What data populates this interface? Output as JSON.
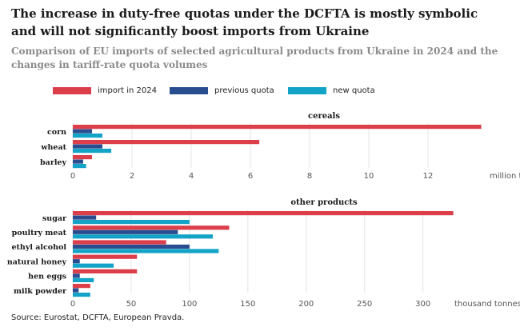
{
  "title": "The increase in duty-free quotas under the DCFTA is mostly symbolic and will not significantly boost imports from Ukraine",
  "subtitle": "Comparison of EU imports of selected agricultural products from Ukraine in 2024 and the changes in tariff-rate quota volumes",
  "source": "Source: Eurostat, DCFTA, European Pravda.",
  "colors": {
    "import": "#dc3e4a",
    "previous": "#2a4d8f",
    "new": "#13a3c6",
    "grid": "#e4e4e4",
    "axis_text": "#555555"
  },
  "legend": [
    {
      "key": "import",
      "label": "import in 2024"
    },
    {
      "key": "previous",
      "label": "previous quota"
    },
    {
      "key": "new",
      "label": "new quota"
    }
  ],
  "chart_data": [
    {
      "type": "bar",
      "orientation": "horizontal",
      "title": "cereals",
      "unit_label": "million tonnes",
      "categories": [
        "corn",
        "wheat",
        "barley"
      ],
      "series": [
        {
          "name": "import in 2024",
          "key": "import",
          "values": [
            13.8,
            6.3,
            0.65
          ]
        },
        {
          "name": "previous quota",
          "key": "previous",
          "values": [
            0.65,
            1.0,
            0.35
          ]
        },
        {
          "name": "new quota",
          "key": "new",
          "values": [
            1.0,
            1.3,
            0.45
          ]
        }
      ],
      "xlim": [
        0,
        14
      ],
      "ticks": [
        0,
        2,
        4,
        6,
        8,
        10,
        12
      ],
      "grid": true
    },
    {
      "type": "bar",
      "orientation": "horizontal",
      "title": "other products",
      "unit_label": "thousand tonnes",
      "categories": [
        "sugar",
        "poultry meat",
        "ethyl alcohol",
        "natural honey",
        "hen eggs",
        "milk powder"
      ],
      "series": [
        {
          "name": "import in 2024",
          "key": "import",
          "values": [
            326,
            134,
            80,
            55,
            55,
            15
          ]
        },
        {
          "name": "previous quota",
          "key": "previous",
          "values": [
            20,
            90,
            100,
            6,
            6,
            5
          ]
        },
        {
          "name": "new quota",
          "key": "new",
          "values": [
            100,
            120,
            125,
            35,
            18,
            15
          ]
        }
      ],
      "xlim": [
        0,
        340
      ],
      "ticks": [
        0,
        50,
        100,
        150,
        200,
        250,
        300
      ],
      "grid": true
    }
  ]
}
